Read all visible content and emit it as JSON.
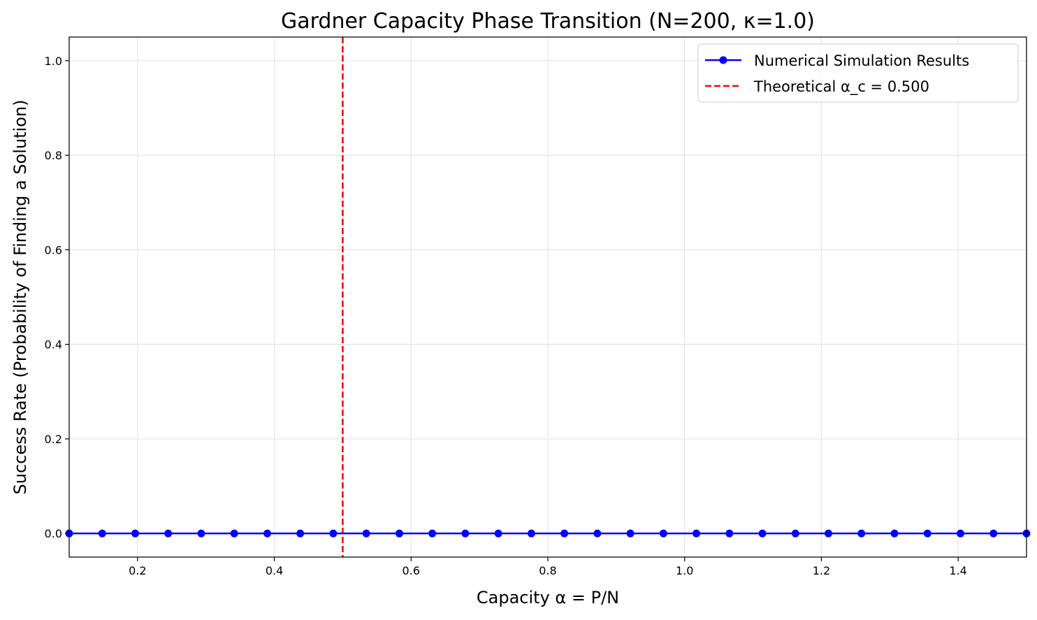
{
  "chart_data": {
    "type": "line",
    "title": "Gardner Capacity Phase Transition (N=200, κ=1.0)",
    "xlabel": "Capacity α = P/N",
    "ylabel": "Success Rate (Probability of Finding a Solution)",
    "xlim": [
      0.1,
      1.5
    ],
    "ylim": [
      -0.05,
      1.05
    ],
    "x_ticks": [
      "0.2",
      "0.4",
      "0.6",
      "0.8",
      "1.0",
      "1.2",
      "1.4"
    ],
    "y_ticks": [
      "0.0",
      "0.2",
      "0.4",
      "0.6",
      "0.8",
      "1.0"
    ],
    "grid": true,
    "legend_position": "top-right",
    "series": [
      {
        "name": "Numerical Simulation Results",
        "color": "#0000ff",
        "marker": "circle",
        "x": [
          0.1,
          0.1483,
          0.1966,
          0.2448,
          0.2931,
          0.3414,
          0.3897,
          0.4379,
          0.4862,
          0.5345,
          0.5828,
          0.631,
          0.6793,
          0.7276,
          0.7759,
          0.8241,
          0.8724,
          0.9207,
          0.969,
          1.0172,
          1.0655,
          1.1138,
          1.1621,
          1.2103,
          1.2586,
          1.3069,
          1.3552,
          1.4034,
          1.4517,
          1.5
        ],
        "y": [
          0,
          0,
          0,
          0,
          0,
          0,
          0,
          0,
          0,
          0,
          0,
          0,
          0,
          0,
          0,
          0,
          0,
          0,
          0,
          0,
          0,
          0,
          0,
          0,
          0,
          0,
          0,
          0,
          0,
          0
        ]
      }
    ],
    "reference_lines": [
      {
        "name": "Theoretical α_c = 0.500",
        "orientation": "vertical",
        "x": 0.5,
        "color": "#ff0000",
        "style": "dashed"
      }
    ]
  }
}
